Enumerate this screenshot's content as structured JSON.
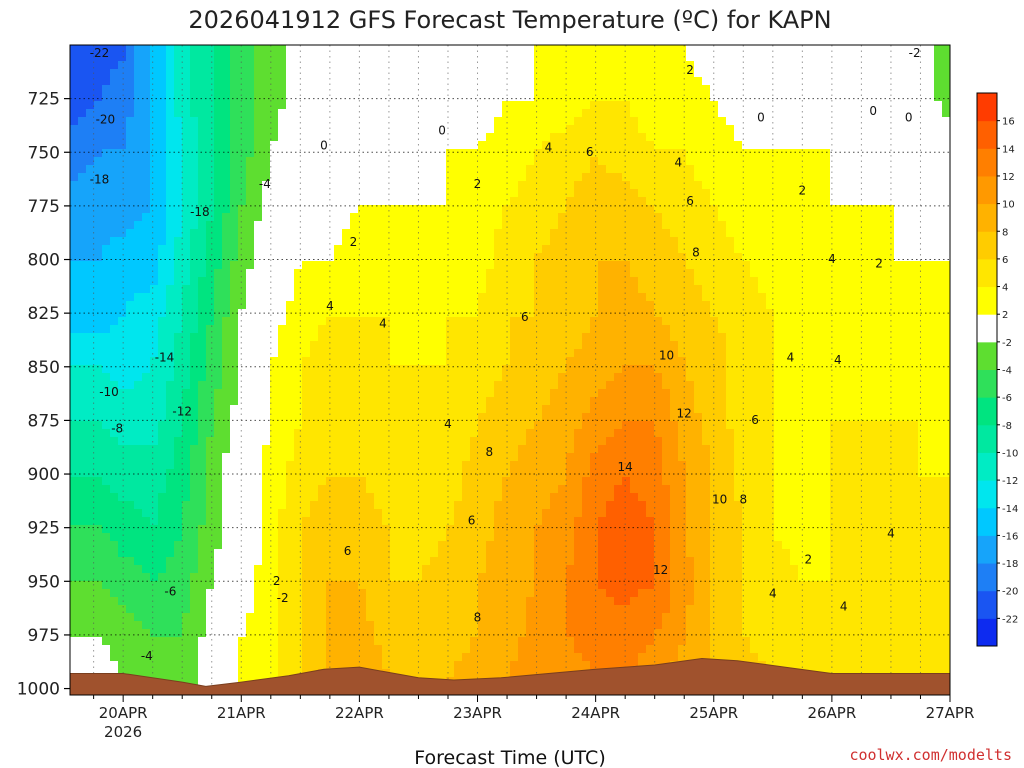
{
  "chart_data": {
    "type": "heatmap",
    "title": "2026041912 GFS Forecast Temperature (ºC) for KAPN",
    "xlabel": "Forecast Time (UTC)",
    "ylabel": "",
    "credit": "coolwx.com/modelts",
    "x_ticks": [
      {
        "label": "20APR",
        "sub": "2026",
        "day": 0
      },
      {
        "label": "21APR",
        "sub": "",
        "day": 1
      },
      {
        "label": "22APR",
        "sub": "",
        "day": 2
      },
      {
        "label": "23APR",
        "sub": "",
        "day": 3
      },
      {
        "label": "24APR",
        "sub": "",
        "day": 4
      },
      {
        "label": "25APR",
        "sub": "",
        "day": 5
      },
      {
        "label": "26APR",
        "sub": "",
        "day": 6
      },
      {
        "label": "27APR",
        "sub": "",
        "day": 7
      }
    ],
    "x_range_days": [
      -0.45,
      7.0
    ],
    "y_ticks": [
      725,
      750,
      775,
      800,
      825,
      850,
      875,
      900,
      925,
      950,
      975,
      1000
    ],
    "y_range_hpa": [
      700,
      1003
    ],
    "colorbar": {
      "levels": [
        -24,
        -22,
        -20,
        -18,
        -16,
        -14,
        -12,
        -10,
        -8,
        -6,
        -4,
        -2,
        2,
        4,
        6,
        8,
        10,
        12,
        14,
        16,
        18
      ],
      "labels": [
        "-22",
        "-20",
        "-18",
        "-16",
        "-14",
        "-12",
        "-10",
        "-8",
        "-6",
        "-4",
        "-2",
        "2",
        "4",
        "6",
        "8",
        "10",
        "12",
        "14",
        "16"
      ],
      "colors": [
        "#0d2bf0",
        "#1a55f2",
        "#1e7ff5",
        "#16a4fa",
        "#00c8ff",
        "#00e6ee",
        "#00ecc4",
        "#00e8a0",
        "#00e480",
        "#2fe05a",
        "#5ede30",
        "#ffffff",
        "#ffff00",
        "#ffe600",
        "#ffcc00",
        "#ffb200",
        "#ff9900",
        "#ff7f00",
        "#ff6000",
        "#ff3c00"
      ]
    },
    "columns_day": [
      -0.45,
      -0.2,
      0.0,
      0.25,
      0.5,
      0.75,
      1.0,
      1.25,
      1.5,
      1.75,
      2.0,
      2.25,
      2.5,
      2.75,
      3.0,
      3.25,
      3.5,
      3.75,
      4.0,
      4.25,
      4.5,
      4.75,
      5.0,
      5.25,
      5.5,
      5.75,
      6.0,
      6.25,
      6.5,
      6.75,
      7.0
    ],
    "rows_hpa": [
      705,
      725,
      750,
      775,
      800,
      825,
      850,
      875,
      900,
      925,
      950,
      975,
      995
    ],
    "temperature_c": [
      [
        -22,
        -21,
        -20,
        -16,
        -11,
        -8,
        -5,
        -3,
        -1,
        0,
        0,
        0,
        0,
        0,
        1,
        1,
        2,
        2,
        3,
        3,
        2,
        2,
        1,
        1,
        0,
        0,
        0,
        0,
        0,
        -1,
        -3
      ],
      [
        -21,
        -20,
        -19,
        -16,
        -11,
        -8,
        -5,
        -3,
        -1,
        0,
        0,
        0,
        0,
        0,
        1,
        2,
        2,
        3,
        4,
        4,
        3,
        3,
        2,
        1,
        0,
        0,
        0,
        0,
        0,
        -1,
        -3
      ],
      [
        -19,
        -18,
        -18,
        -16,
        -12,
        -8,
        -5,
        -2,
        0,
        0,
        1,
        1,
        1,
        2,
        2,
        3,
        4,
        5,
        6,
        5,
        4,
        4,
        3,
        2,
        2,
        2,
        2,
        1,
        1,
        0,
        -1
      ],
      [
        -17,
        -17,
        -17,
        -16,
        -12,
        -8,
        -4,
        -1,
        1,
        1,
        2,
        2,
        2,
        2,
        3,
        4,
        5,
        6,
        7,
        7,
        6,
        5,
        4,
        3,
        3,
        3,
        2,
        2,
        2,
        1,
        1
      ],
      [
        -16,
        -16,
        -15,
        -15,
        -11,
        -7,
        -3,
        0,
        2,
        2,
        3,
        3,
        3,
        3,
        3,
        5,
        6,
        7,
        8,
        8,
        7,
        6,
        5,
        4,
        3,
        3,
        3,
        3,
        2,
        2,
        2
      ],
      [
        -15,
        -15,
        -14,
        -13,
        -10,
        -6,
        -2,
        1,
        3,
        4,
        4,
        4,
        3,
        4,
        4,
        6,
        6,
        7,
        8,
        9,
        8,
        7,
        6,
        5,
        4,
        3,
        3,
        3,
        3,
        3,
        3
      ],
      [
        -12,
        -12,
        -13,
        -12,
        -9,
        -5,
        -2,
        2,
        4,
        5,
        5,
        4,
        4,
        4,
        5,
        6,
        7,
        8,
        9,
        10,
        10,
        8,
        7,
        5,
        4,
        3,
        3,
        4,
        3,
        3,
        3
      ],
      [
        -10,
        -10,
        -11,
        -11,
        -8,
        -4,
        -1,
        2,
        4,
        5,
        5,
        5,
        4,
        4,
        6,
        7,
        8,
        9,
        11,
        12,
        12,
        9,
        7,
        5,
        4,
        3,
        4,
        4,
        4,
        4,
        3
      ],
      [
        -8,
        -8,
        -9,
        -9,
        -7,
        -3,
        0,
        3,
        5,
        6,
        6,
        5,
        4,
        5,
        7,
        8,
        9,
        10,
        13,
        14,
        13,
        10,
        8,
        5,
        4,
        3,
        4,
        4,
        4,
        4,
        4
      ],
      [
        -6,
        -6,
        -7,
        -8,
        -6,
        -3,
        0,
        3,
        6,
        7,
        7,
        6,
        5,
        6,
        7,
        9,
        10,
        11,
        14,
        15,
        14,
        10,
        8,
        6,
        4,
        3,
        4,
        4,
        4,
        4,
        4
      ],
      [
        -4,
        -4,
        -5,
        -6,
        -5,
        -2,
        1,
        3,
        6,
        8,
        8,
        6,
        6,
        7,
        8,
        9,
        10,
        12,
        14,
        15,
        14,
        11,
        8,
        6,
        5,
        4,
        4,
        4,
        4,
        4,
        4
      ],
      [
        -2,
        -2,
        -3,
        -4,
        -4,
        -1,
        2,
        3,
        6,
        8,
        9,
        7,
        6,
        7,
        8,
        9,
        11,
        12,
        13,
        13,
        12,
        10,
        8,
        6,
        5,
        5,
        5,
        5,
        5,
        5,
        5
      ],
      [
        -1,
        -1,
        -2,
        -3,
        -3,
        -1,
        2,
        3,
        6,
        9,
        10,
        8,
        6,
        8,
        9,
        10,
        11,
        11,
        12,
        12,
        11,
        9,
        8,
        7,
        6,
        6,
        6,
        6,
        6,
        6,
        6
      ]
    ],
    "terrain_hpa": [
      {
        "day": -0.45,
        "hpa": 993
      },
      {
        "day": 0.0,
        "hpa": 993
      },
      {
        "day": 0.5,
        "hpa": 997
      },
      {
        "day": 0.7,
        "hpa": 999
      },
      {
        "day": 1.0,
        "hpa": 997
      },
      {
        "day": 1.4,
        "hpa": 994
      },
      {
        "day": 1.7,
        "hpa": 991
      },
      {
        "day": 2.0,
        "hpa": 990
      },
      {
        "day": 2.2,
        "hpa": 992
      },
      {
        "day": 2.5,
        "hpa": 995
      },
      {
        "day": 2.8,
        "hpa": 996
      },
      {
        "day": 3.2,
        "hpa": 995
      },
      {
        "day": 3.6,
        "hpa": 993
      },
      {
        "day": 4.0,
        "hpa": 991
      },
      {
        "day": 4.5,
        "hpa": 989
      },
      {
        "day": 4.9,
        "hpa": 986
      },
      {
        "day": 5.2,
        "hpa": 987
      },
      {
        "day": 5.6,
        "hpa": 990
      },
      {
        "day": 6.0,
        "hpa": 993
      },
      {
        "day": 6.5,
        "hpa": 993
      },
      {
        "day": 7.0,
        "hpa": 993
      }
    ],
    "contour_labels": [
      {
        "text": "-22",
        "day": -0.2,
        "hpa": 704
      },
      {
        "text": "-20",
        "day": -0.15,
        "hpa": 735
      },
      {
        "text": "-18",
        "day": -0.2,
        "hpa": 763
      },
      {
        "text": "-18",
        "day": 0.65,
        "hpa": 778
      },
      {
        "text": "-4",
        "day": 1.2,
        "hpa": 765
      },
      {
        "text": "0",
        "day": 1.7,
        "hpa": 747
      },
      {
        "text": "0",
        "day": 2.7,
        "hpa": 740
      },
      {
        "text": "2",
        "day": 1.95,
        "hpa": 792
      },
      {
        "text": "2",
        "day": 3.0,
        "hpa": 765
      },
      {
        "text": "4",
        "day": 1.75,
        "hpa": 822
      },
      {
        "text": "4",
        "day": 2.2,
        "hpa": 830
      },
      {
        "text": "4",
        "day": 3.6,
        "hpa": 748
      },
      {
        "text": "6",
        "day": 3.95,
        "hpa": 750
      },
      {
        "text": "4",
        "day": 4.7,
        "hpa": 755
      },
      {
        "text": "2",
        "day": 4.8,
        "hpa": 712
      },
      {
        "text": "6",
        "day": 4.8,
        "hpa": 773
      },
      {
        "text": "2",
        "day": 5.75,
        "hpa": 768
      },
      {
        "text": "0",
        "day": 5.4,
        "hpa": 734
      },
      {
        "text": "0",
        "day": 6.35,
        "hpa": 731
      },
      {
        "text": "0",
        "day": 6.65,
        "hpa": 734
      },
      {
        "text": "-2",
        "day": 6.7,
        "hpa": 704
      },
      {
        "text": "2",
        "day": 6.4,
        "hpa": 802
      },
      {
        "text": "4",
        "day": 6.0,
        "hpa": 800
      },
      {
        "text": "8",
        "day": 4.85,
        "hpa": 797
      },
      {
        "text": "6",
        "day": 3.4,
        "hpa": 827
      },
      {
        "text": "10",
        "day": 4.6,
        "hpa": 845
      },
      {
        "text": "12",
        "day": 4.75,
        "hpa": 872
      },
      {
        "text": "6",
        "day": 5.35,
        "hpa": 875
      },
      {
        "text": "4",
        "day": 5.65,
        "hpa": 846
      },
      {
        "text": "4",
        "day": 6.05,
        "hpa": 847
      },
      {
        "text": "-14",
        "day": 0.35,
        "hpa": 846
      },
      {
        "text": "-10",
        "day": -0.12,
        "hpa": 862
      },
      {
        "text": "-12",
        "day": 0.5,
        "hpa": 871
      },
      {
        "text": "-8",
        "day": -0.05,
        "hpa": 879
      },
      {
        "text": "-6",
        "day": 0.4,
        "hpa": 955
      },
      {
        "text": "-4",
        "day": 0.2,
        "hpa": 985
      },
      {
        "text": "-2",
        "day": 1.35,
        "hpa": 958
      },
      {
        "text": "4",
        "day": 2.75,
        "hpa": 877
      },
      {
        "text": "8",
        "day": 3.1,
        "hpa": 890
      },
      {
        "text": "6",
        "day": 2.95,
        "hpa": 922
      },
      {
        "text": "8",
        "day": 3.0,
        "hpa": 967
      },
      {
        "text": "6",
        "day": 1.9,
        "hpa": 936
      },
      {
        "text": "2",
        "day": 1.3,
        "hpa": 950
      },
      {
        "text": "14",
        "day": 4.25,
        "hpa": 897
      },
      {
        "text": "12",
        "day": 4.55,
        "hpa": 945
      },
      {
        "text": "10",
        "day": 5.05,
        "hpa": 912
      },
      {
        "text": "8",
        "day": 5.25,
        "hpa": 912
      },
      {
        "text": "2",
        "day": 5.8,
        "hpa": 940
      },
      {
        "text": "4",
        "day": 5.5,
        "hpa": 956
      },
      {
        "text": "4",
        "day": 6.1,
        "hpa": 962
      },
      {
        "text": "4",
        "day": 6.5,
        "hpa": 928
      }
    ]
  }
}
